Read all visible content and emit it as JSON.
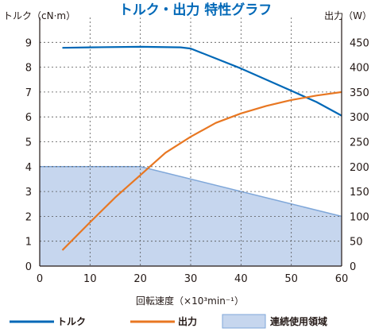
{
  "chart_data": {
    "type": "line",
    "title": "トルク・出力  特性グラフ",
    "xlabel": "回転速度（×10³min⁻¹）",
    "ylabel_left": "トルク（cN·m）",
    "ylabel_right": "出力（W）",
    "xlim": [
      0,
      60
    ],
    "ylim_left": [
      0,
      10
    ],
    "ylim_right": [
      0,
      500
    ],
    "x_ticks": [
      "0",
      "10",
      "20",
      "30",
      "40",
      "50",
      "60"
    ],
    "y_left_ticks": [
      "0",
      "1",
      "2",
      "3",
      "4",
      "5",
      "6",
      "7",
      "8",
      "9"
    ],
    "y_right_ticks": [
      "0",
      "50",
      "100",
      "150",
      "200",
      "250",
      "300",
      "350",
      "400",
      "450"
    ],
    "grid": "dashed",
    "series": [
      {
        "name": "トルク",
        "axis": "left",
        "color": "#0068b7",
        "points": [
          [
            4.5,
            8.78
          ],
          [
            10,
            8.8
          ],
          [
            20,
            8.82
          ],
          [
            28,
            8.8
          ],
          [
            30,
            8.75
          ],
          [
            35,
            8.35
          ],
          [
            40,
            7.95
          ],
          [
            45,
            7.5
          ],
          [
            50,
            7.05
          ],
          [
            55,
            6.6
          ],
          [
            60,
            6.05
          ]
        ]
      },
      {
        "name": "出力",
        "axis": "right",
        "color": "#e87722",
        "points": [
          [
            4.5,
            32
          ],
          [
            10,
            88
          ],
          [
            15,
            138
          ],
          [
            20,
            183
          ],
          [
            25,
            228
          ],
          [
            30,
            260
          ],
          [
            35,
            288
          ],
          [
            40,
            307
          ],
          [
            45,
            322
          ],
          [
            50,
            334
          ],
          [
            55,
            343
          ],
          [
            60,
            350
          ]
        ]
      }
    ],
    "area": {
      "name": "連続使用領域",
      "axis": "left",
      "color": "#c6d6ee",
      "edge_color": "#7fa7d9",
      "points": [
        [
          0,
          4.0
        ],
        [
          20,
          4.0
        ],
        [
          60,
          2.0
        ]
      ]
    }
  }
}
